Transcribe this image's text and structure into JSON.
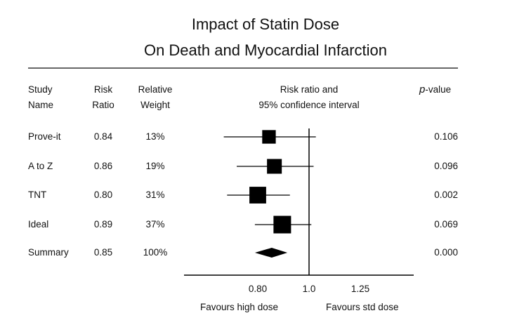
{
  "chart_data": {
    "type": "forest",
    "title": "Impact of Statin Dose",
    "subtitle": "On Death and Myocardial Infarction",
    "columns": {
      "study_line1": "Study",
      "study_line2": "Name",
      "ratio_line1": "Risk",
      "ratio_line2": "Ratio",
      "weight_line1": "Relative",
      "weight_line2": "Weight",
      "ci_line1": "Risk ratio and",
      "ci_line2": "95% confidence interval",
      "p_italic": "p",
      "p_rest": "-value"
    },
    "studies": [
      {
        "name": "Prove-it",
        "ratio_label": "0.84",
        "weight_label": "13%",
        "p_label": "0.106",
        "rr": 0.84,
        "lower": 0.69,
        "upper": 1.03,
        "weight": 13
      },
      {
        "name": "A to Z",
        "ratio_label": "0.86",
        "weight_label": "19%",
        "p_label": "0.096",
        "rr": 0.86,
        "lower": 0.73,
        "upper": 1.02,
        "weight": 19
      },
      {
        "name": "TNT",
        "ratio_label": "0.80",
        "weight_label": "31%",
        "p_label": "0.002",
        "rr": 0.8,
        "lower": 0.7,
        "upper": 0.92,
        "weight": 31
      },
      {
        "name": "Ideal",
        "ratio_label": "0.89",
        "weight_label": "37%",
        "p_label": "0.069",
        "rr": 0.89,
        "lower": 0.79,
        "upper": 1.01,
        "weight": 37
      }
    ],
    "summary": {
      "name": "Summary",
      "ratio_label": "0.85",
      "weight_label": "100%",
      "p_label": "0.000",
      "rr": 0.85,
      "lower": 0.79,
      "upper": 0.91
    },
    "x_axis": {
      "scale": "log",
      "reference": 1.0,
      "ticks": [
        {
          "value": 0.8,
          "label": "0.80"
        },
        {
          "value": 1.0,
          "label": "1.0"
        },
        {
          "value": 1.25,
          "label": "1.25"
        }
      ],
      "xlim": [
        0.5,
        2.0
      ],
      "left_label": "Favours high dose",
      "right_label": "Favours std dose"
    },
    "colors": {
      "ink": "#000000",
      "text": "#111111"
    }
  }
}
